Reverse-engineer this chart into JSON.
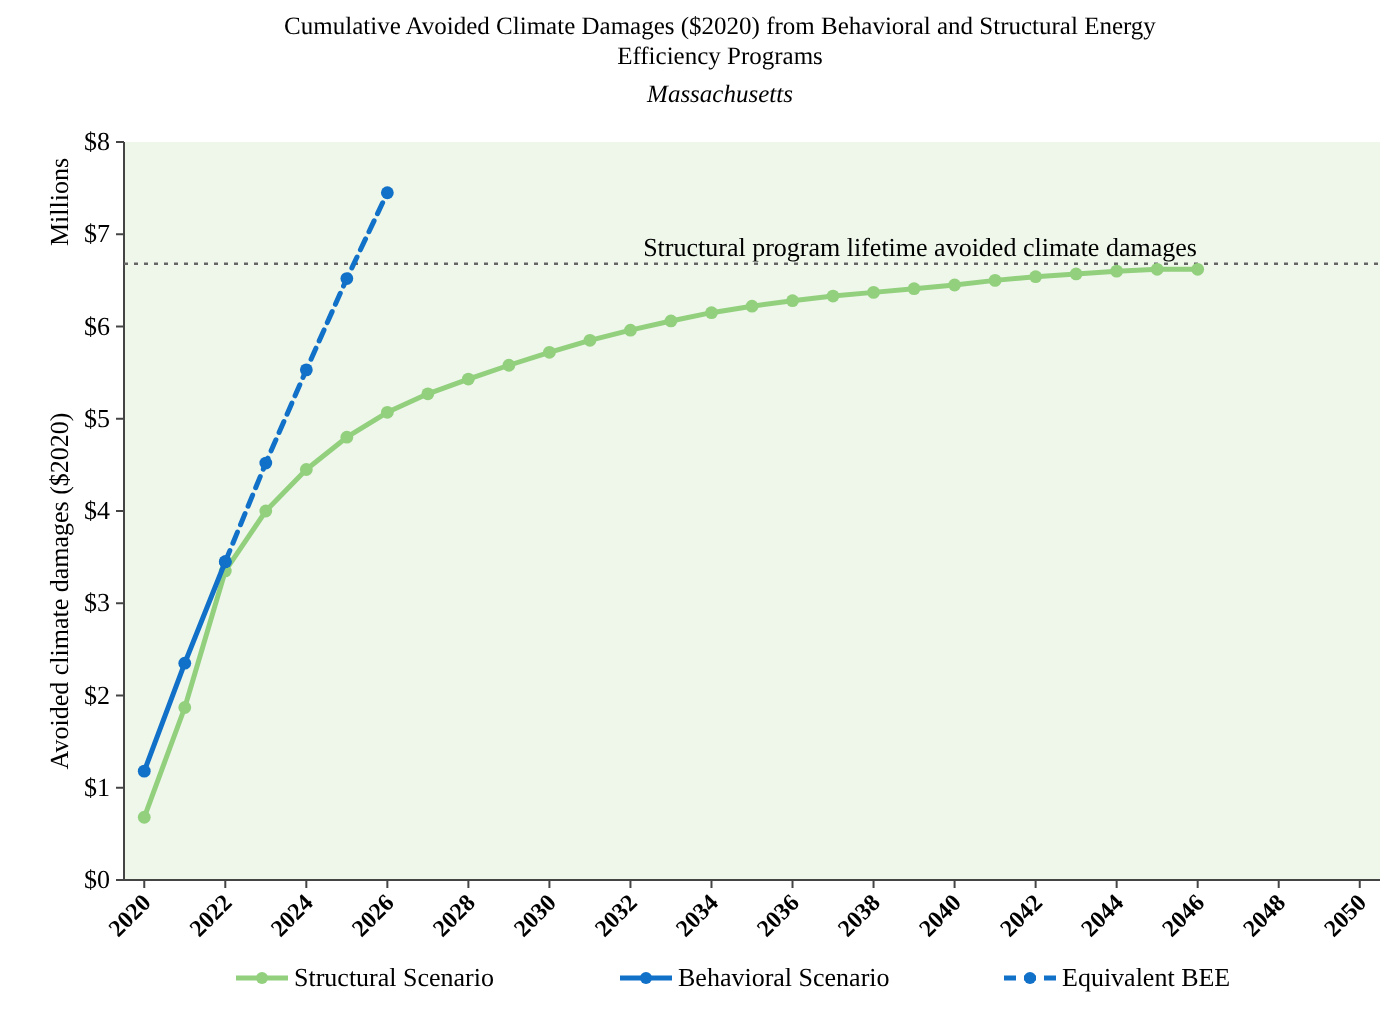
{
  "chart_data": {
    "type": "line",
    "title": "Cumulative Avoided Climate Damages ($2020) from Behavioral and Structural Energy Efficiency Programs",
    "subtitle": "Massachusetts",
    "ylabel": "Avoided climate damages ($2020)",
    "annotations": [
      "Millions"
    ],
    "xlim": [
      2019.5,
      2050.5
    ],
    "xticks": [
      2020,
      2022,
      2024,
      2026,
      2028,
      2030,
      2032,
      2034,
      2036,
      2038,
      2040,
      2042,
      2044,
      2046,
      2048,
      2050
    ],
    "ylim": [
      0,
      8
    ],
    "yticks": [
      {
        "value": 0,
        "label": "$0"
      },
      {
        "value": 1,
        "label": "$1"
      },
      {
        "value": 2,
        "label": "$2"
      },
      {
        "value": 3,
        "label": "$3"
      },
      {
        "value": 4,
        "label": "$4"
      },
      {
        "value": 5,
        "label": "$5"
      },
      {
        "value": 6,
        "label": "$6"
      },
      {
        "value": 7,
        "label": "$7"
      },
      {
        "value": 8,
        "label": "$8"
      }
    ],
    "legend": "bottom",
    "marker": "circle",
    "grid": false,
    "ref_lines": [
      {
        "axis": "y",
        "value": 6.68,
        "label": "Structural program lifetime  avoided climate damages",
        "color": "#666666",
        "line_style": "dotted"
      }
    ],
    "series": [
      {
        "name": "Structural Scenario",
        "color": "#92d07e",
        "line_style": "solid",
        "x": [
          2020,
          2021,
          2022,
          2023,
          2024,
          2025,
          2026,
          2027,
          2028,
          2029,
          2030,
          2031,
          2032,
          2033,
          2034,
          2035,
          2036,
          2037,
          2038,
          2039,
          2040,
          2041,
          2042,
          2043,
          2044,
          2045,
          2046
        ],
        "values": [
          0.68,
          1.87,
          3.35,
          4.0,
          4.45,
          4.8,
          5.07,
          5.27,
          5.43,
          5.58,
          5.72,
          5.85,
          5.96,
          6.06,
          6.15,
          6.22,
          6.28,
          6.33,
          6.37,
          6.41,
          6.45,
          6.5,
          6.54,
          6.57,
          6.6,
          6.62,
          6.62
        ]
      },
      {
        "name": "Behavioral Scenario",
        "color": "#1170c8",
        "line_style": "solid",
        "x": [
          2020,
          2021,
          2022
        ],
        "values": [
          1.18,
          2.35,
          3.45
        ]
      },
      {
        "name": "Equivalent BEE",
        "color": "#1170c8",
        "line_style": "dashed",
        "x": [
          2022,
          2023,
          2024,
          2025,
          2026
        ],
        "values": [
          3.45,
          4.52,
          5.53,
          6.52,
          7.45
        ]
      }
    ]
  }
}
